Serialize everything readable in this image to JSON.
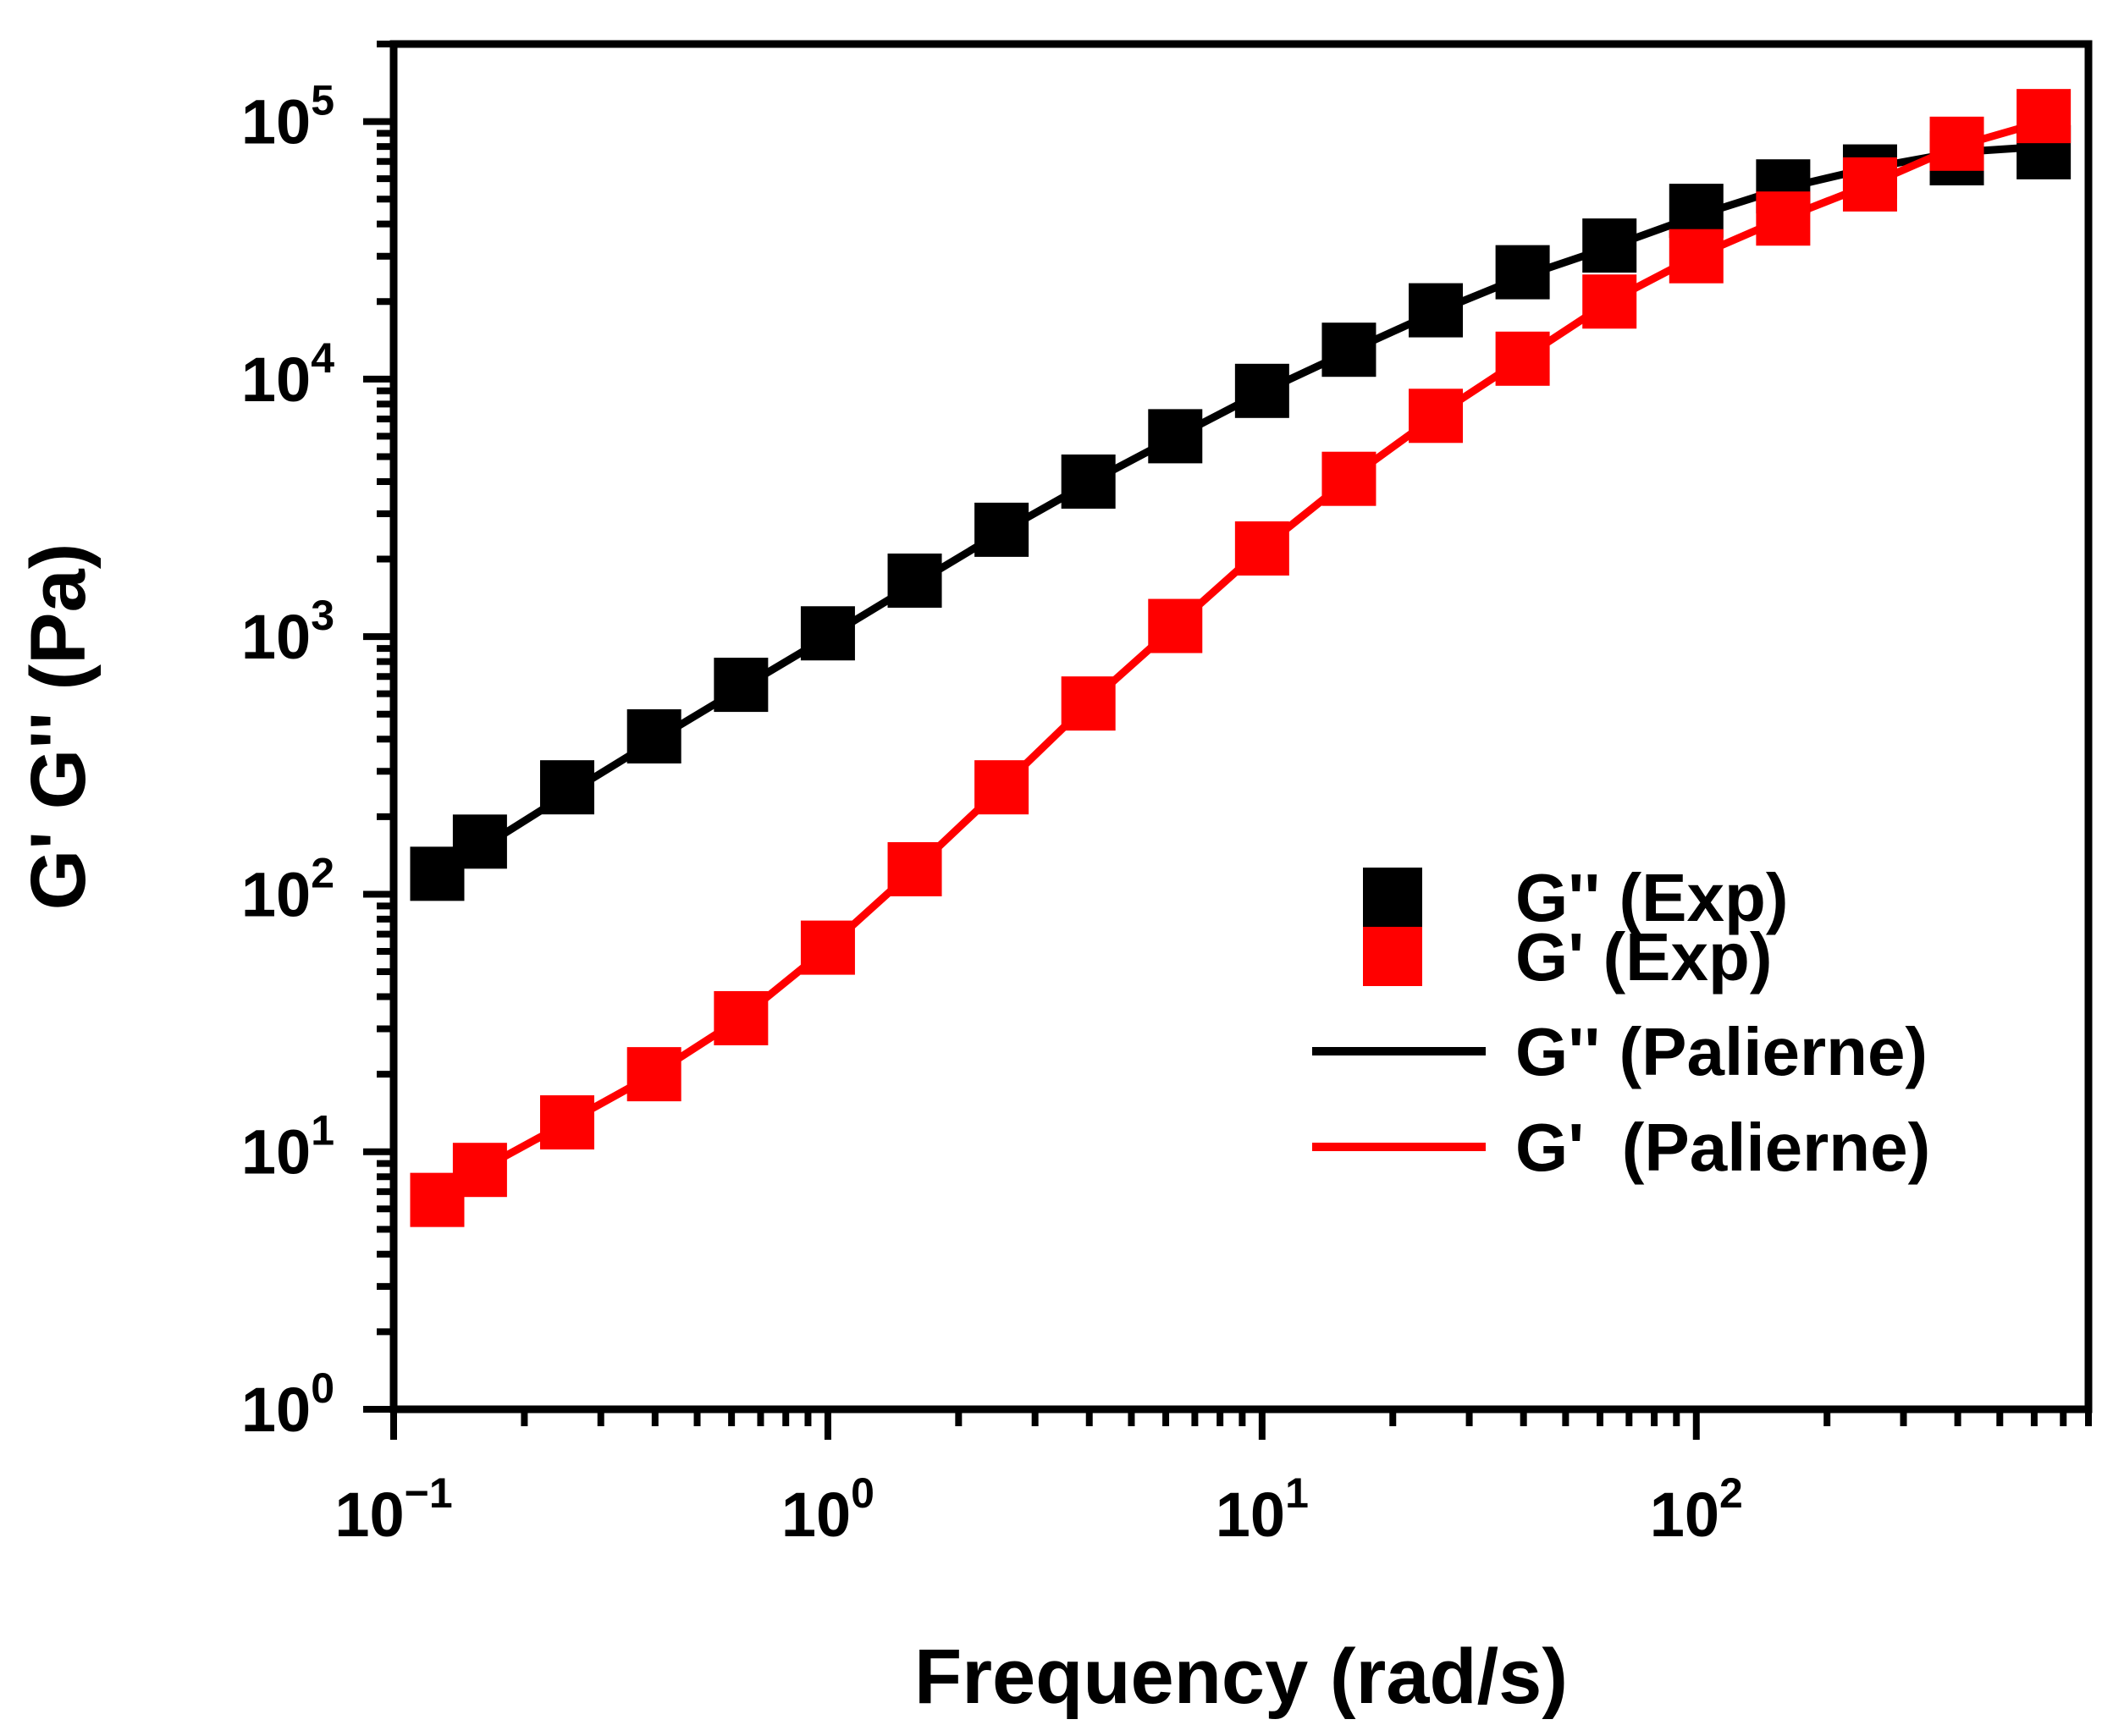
{
  "chart_data": {
    "type": "scatter",
    "title": "",
    "xlabel": "Frequency (rad/s)",
    "ylabel": "G' G'' (Pa)",
    "xscale": "log",
    "yscale": "log",
    "xlim": [
      0.1,
      800
    ],
    "ylim": [
      1,
      200000
    ],
    "x_ticks": [
      {
        "base": "10",
        "exp": "−1",
        "value": 0.1
      },
      {
        "base": "10",
        "exp": "0",
        "value": 1
      },
      {
        "base": "10",
        "exp": "1",
        "value": 10
      },
      {
        "base": "10",
        "exp": "2",
        "value": 100
      }
    ],
    "y_ticks": [
      {
        "base": "10",
        "exp": "0",
        "value": 1
      },
      {
        "base": "10",
        "exp": "1",
        "value": 10
      },
      {
        "base": "10",
        "exp": "2",
        "value": 100
      },
      {
        "base": "10",
        "exp": "3",
        "value": 1000
      },
      {
        "base": "10",
        "exp": "4",
        "value": 10000
      },
      {
        "base": "10",
        "exp": "5",
        "value": 100000
      }
    ],
    "legend_position": "center-right",
    "series": [
      {
        "name": "G'' (Exp)",
        "kind": "markers",
        "marker": "square",
        "color": "#000000",
        "x": [
          0.126,
          0.158,
          0.251,
          0.398,
          0.631,
          1.0,
          1.585,
          2.512,
          3.981,
          6.31,
          10.0,
          15.85,
          25.12,
          39.81,
          63.1,
          100,
          158.5,
          251.2,
          398.1,
          631
        ],
        "y": [
          120,
          160,
          260,
          410,
          650,
          1030,
          1650,
          2600,
          4000,
          6000,
          9000,
          13000,
          18500,
          26000,
          33000,
          45000,
          56000,
          64000,
          72000,
          76000
        ]
      },
      {
        "name": "G' (Exp)",
        "kind": "markers",
        "marker": "square",
        "color": "#ff0000",
        "x": [
          0.126,
          0.158,
          0.251,
          0.398,
          0.631,
          1.0,
          1.585,
          2.512,
          3.981,
          6.31,
          10.0,
          15.85,
          25.12,
          39.81,
          63.1,
          100,
          158.5,
          251.2,
          398.1,
          631
        ],
        "y": [
          6.5,
          8.5,
          13,
          20,
          33,
          62,
          125,
          260,
          550,
          1100,
          2200,
          4100,
          7200,
          12000,
          20000,
          30000,
          42000,
          57000,
          82000,
          105000
        ]
      },
      {
        "name": "G'' (Palierne)",
        "kind": "line",
        "color": "#000000",
        "x": [
          0.126,
          0.158,
          0.251,
          0.398,
          0.631,
          1.0,
          1.585,
          2.512,
          3.981,
          6.31,
          10.0,
          15.85,
          25.12,
          39.81,
          63.1,
          100,
          158.5,
          251.2,
          398.1,
          631
        ],
        "y": [
          115,
          150,
          245,
          395,
          630,
          1000,
          1600,
          2550,
          3950,
          5950,
          8900,
          12800,
          18200,
          25000,
          32500,
          43000,
          55000,
          66000,
          76000,
          80000
        ]
      },
      {
        "name": "G'  (Palierne)",
        "kind": "line",
        "color": "#ff0000",
        "x": [
          0.126,
          0.158,
          0.251,
          0.398,
          0.631,
          1.0,
          1.585,
          2.512,
          3.981,
          6.31,
          10.0,
          15.85,
          25.12,
          39.81,
          63.1,
          100,
          158.5,
          251.2,
          398.1,
          631
        ],
        "y": [
          6.5,
          8.5,
          13,
          20,
          33,
          62,
          125,
          260,
          550,
          1100,
          2200,
          4100,
          7200,
          12000,
          20000,
          30000,
          42000,
          57000,
          80000,
          100000
        ]
      }
    ]
  }
}
